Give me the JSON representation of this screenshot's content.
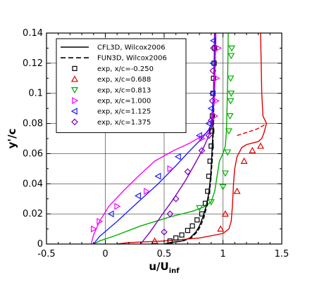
{
  "chart_data": {
    "type": "line",
    "xlabel_main": "u/U",
    "xlabel_sub": "inf",
    "ylabel": "y'/c",
    "xlim": [
      -0.5,
      1.5
    ],
    "ylim": [
      0,
      0.14
    ],
    "xticks": [
      -0.5,
      0,
      0.5,
      1,
      1.5
    ],
    "xtick_labels": [
      "-0.5",
      "0",
      "0.5",
      "1",
      "1.5"
    ],
    "yticks": [
      0,
      0.02,
      0.04,
      0.06,
      0.08,
      0.1,
      0.12,
      0.14
    ],
    "ytick_labels": [
      "0",
      "0.02",
      "0.04",
      "0.06",
      "0.08",
      "0.1",
      "0.12",
      "0.14"
    ],
    "grid": true,
    "legend_position": "top-left",
    "legend": [
      {
        "label": "CFL3D, Wilcox2006",
        "kind": "line",
        "dash": "solid",
        "color": "#000000"
      },
      {
        "label": "FUN3D, Wilcox2006",
        "kind": "line",
        "dash": "dashed",
        "color": "#000000"
      },
      {
        "label": "exp, x/c=-0.250",
        "kind": "marker",
        "marker": "square",
        "color": "#000000"
      },
      {
        "label": "exp, x/c=0.688",
        "kind": "marker",
        "marker": "triangle-up",
        "color": "#e00000"
      },
      {
        "label": "exp, x/c=0.813",
        "kind": "marker",
        "marker": "triangle-down",
        "color": "#00b000"
      },
      {
        "label": "exp, x/c=1.000",
        "kind": "marker",
        "marker": "triangle-right",
        "color": "#ff00ff"
      },
      {
        "label": "exp, x/c=1.125",
        "kind": "marker",
        "marker": "triangle-left",
        "color": "#2020ff"
      },
      {
        "label": "exp, x/c=1.375",
        "kind": "marker",
        "marker": "diamond",
        "color": "#8000c0"
      }
    ],
    "lines": [
      {
        "station": "-0.250",
        "color": "#000000",
        "dash": "solid",
        "points": [
          [
            0.5,
            0
          ],
          [
            0.55,
            0.001
          ],
          [
            0.65,
            0.002
          ],
          [
            0.72,
            0.004
          ],
          [
            0.77,
            0.008
          ],
          [
            0.8,
            0.012
          ],
          [
            0.83,
            0.018
          ],
          [
            0.86,
            0.026
          ],
          [
            0.88,
            0.034
          ],
          [
            0.895,
            0.045
          ],
          [
            0.905,
            0.058
          ],
          [
            0.912,
            0.07
          ],
          [
            0.918,
            0.085
          ],
          [
            0.922,
            0.1
          ],
          [
            0.926,
            0.12
          ],
          [
            0.93,
            0.14
          ]
        ]
      },
      {
        "station": "-0.250",
        "color": "#000000",
        "dash": "dashed",
        "points": [
          [
            0.5,
            0
          ],
          [
            0.56,
            0.001
          ],
          [
            0.66,
            0.002
          ],
          [
            0.73,
            0.004
          ],
          [
            0.78,
            0.008
          ],
          [
            0.81,
            0.012
          ],
          [
            0.84,
            0.018
          ],
          [
            0.865,
            0.026
          ],
          [
            0.885,
            0.034
          ],
          [
            0.9,
            0.045
          ],
          [
            0.91,
            0.058
          ],
          [
            0.916,
            0.07
          ],
          [
            0.921,
            0.085
          ],
          [
            0.925,
            0.1
          ],
          [
            0.929,
            0.12
          ],
          [
            0.933,
            0.14
          ]
        ]
      },
      {
        "station": "0.688",
        "color": "#e00000",
        "dash": "solid",
        "points": [
          [
            0.1,
            0
          ],
          [
            0.2,
            0.001
          ],
          [
            0.5,
            0.002
          ],
          [
            0.8,
            0.004
          ],
          [
            1.0,
            0.007
          ],
          [
            1.05,
            0.01
          ],
          [
            1.07,
            0.015
          ],
          [
            1.08,
            0.025
          ],
          [
            1.09,
            0.04
          ],
          [
            1.1,
            0.05
          ],
          [
            1.12,
            0.058
          ],
          [
            1.16,
            0.064
          ],
          [
            1.2,
            0.066
          ],
          [
            1.25,
            0.067
          ],
          [
            1.3,
            0.068
          ],
          [
            1.33,
            0.07
          ],
          [
            1.35,
            0.074
          ],
          [
            1.37,
            0.08
          ],
          [
            1.34,
            0.085
          ],
          [
            1.33,
            0.1
          ],
          [
            1.32,
            0.14
          ]
        ]
      },
      {
        "station": "0.688",
        "color": "#e00000",
        "dash": "dashed",
        "points": [
          [
            1.12,
            0.072
          ],
          [
            1.2,
            0.074
          ],
          [
            1.28,
            0.076
          ],
          [
            1.33,
            0.078
          ],
          [
            1.37,
            0.08
          ]
        ]
      },
      {
        "station": "0.813",
        "color": "#00b000",
        "dash": "solid",
        "points": [
          [
            -0.1,
            0
          ],
          [
            -0.05,
            0.002
          ],
          [
            0.1,
            0.006
          ],
          [
            0.3,
            0.012
          ],
          [
            0.55,
            0.018
          ],
          [
            0.75,
            0.022
          ],
          [
            0.85,
            0.025
          ],
          [
            0.9,
            0.028
          ],
          [
            0.93,
            0.035
          ],
          [
            0.95,
            0.045
          ],
          [
            0.97,
            0.055
          ],
          [
            1.0,
            0.06
          ],
          [
            1.02,
            0.065
          ],
          [
            1.03,
            0.075
          ],
          [
            1.035,
            0.09
          ],
          [
            1.04,
            0.11
          ],
          [
            1.045,
            0.14
          ]
        ]
      },
      {
        "station": "1.000",
        "color": "#ff00ff",
        "dash": "solid",
        "points": [
          [
            -0.12,
            0
          ],
          [
            -0.1,
            0.006
          ],
          [
            -0.05,
            0.015
          ],
          [
            0.03,
            0.025
          ],
          [
            0.15,
            0.035
          ],
          [
            0.28,
            0.045
          ],
          [
            0.42,
            0.055
          ],
          [
            0.58,
            0.062
          ],
          [
            0.72,
            0.067
          ],
          [
            0.83,
            0.072
          ],
          [
            0.88,
            0.075
          ],
          [
            0.9,
            0.078
          ],
          [
            0.91,
            0.08
          ],
          [
            0.92,
            0.09
          ],
          [
            0.93,
            0.1
          ],
          [
            0.935,
            0.12
          ],
          [
            0.94,
            0.14
          ]
        ]
      },
      {
        "station": "1.125",
        "color": "#2020ff",
        "dash": "solid",
        "points": [
          [
            -0.1,
            0
          ],
          [
            -0.05,
            0.005
          ],
          [
            0.1,
            0.015
          ],
          [
            0.28,
            0.028
          ],
          [
            0.45,
            0.04
          ],
          [
            0.6,
            0.052
          ],
          [
            0.72,
            0.062
          ],
          [
            0.82,
            0.07
          ],
          [
            0.88,
            0.076
          ],
          [
            0.9,
            0.08
          ],
          [
            0.91,
            0.09
          ],
          [
            0.92,
            0.1
          ],
          [
            0.925,
            0.12
          ],
          [
            0.93,
            0.14
          ]
        ]
      },
      {
        "station": "1.375",
        "color": "#8000c0",
        "dash": "solid",
        "points": [
          [
            0.3,
            0
          ],
          [
            0.38,
            0.008
          ],
          [
            0.47,
            0.018
          ],
          [
            0.58,
            0.03
          ],
          [
            0.68,
            0.042
          ],
          [
            0.76,
            0.053
          ],
          [
            0.83,
            0.063
          ],
          [
            0.88,
            0.072
          ],
          [
            0.905,
            0.078
          ],
          [
            0.915,
            0.085
          ],
          [
            0.92,
            0.1
          ],
          [
            0.925,
            0.12
          ],
          [
            0.928,
            0.14
          ]
        ]
      }
    ],
    "markers": [
      {
        "station": "-0.250",
        "marker": "square",
        "color": "#000000",
        "points": [
          [
            0.55,
            0.002
          ],
          [
            0.6,
            0.004
          ],
          [
            0.65,
            0.006
          ],
          [
            0.7,
            0.009
          ],
          [
            0.74,
            0.012
          ],
          [
            0.78,
            0.016
          ],
          [
            0.82,
            0.02
          ],
          [
            0.85,
            0.027
          ],
          [
            0.87,
            0.035
          ],
          [
            0.88,
            0.045
          ],
          [
            0.89,
            0.055
          ],
          [
            0.9,
            0.065
          ],
          [
            0.905,
            0.075
          ],
          [
            0.91,
            0.085
          ],
          [
            0.915,
            0.1
          ],
          [
            0.92,
            0.11
          ],
          [
            0.925,
            0.12
          ],
          [
            0.93,
            0.13
          ]
        ]
      },
      {
        "station": "0.688",
        "marker": "triangle-up",
        "color": "#e00000",
        "points": [
          [
            0.42,
            0.002
          ],
          [
            0.98,
            0.01
          ],
          [
            1.02,
            0.02
          ],
          [
            1.12,
            0.035
          ],
          [
            1.18,
            0.055
          ],
          [
            1.25,
            0.062
          ],
          [
            1.32,
            0.065
          ]
        ]
      },
      {
        "station": "0.813",
        "marker": "triangle-down",
        "color": "#00b000",
        "points": [
          [
            0.8,
            0.024
          ],
          [
            0.9,
            0.028
          ],
          [
            1.0,
            0.038
          ],
          [
            1.02,
            0.047
          ],
          [
            1.04,
            0.061
          ],
          [
            1.05,
            0.075
          ],
          [
            1.06,
            0.085
          ],
          [
            1.065,
            0.095
          ],
          [
            1.07,
            0.1
          ],
          [
            1.065,
            0.11
          ],
          [
            1.07,
            0.125
          ],
          [
            1.075,
            0.13
          ]
        ]
      },
      {
        "station": "1.000",
        "marker": "triangle-right",
        "color": "#ff00ff",
        "points": [
          [
            -0.1,
            0.01
          ],
          [
            -0.05,
            0.015
          ],
          [
            0.1,
            0.025
          ],
          [
            0.35,
            0.035
          ],
          [
            0.55,
            0.05
          ],
          [
            0.82,
            0.07
          ],
          [
            0.93,
            0.085
          ],
          [
            0.94,
            0.095
          ],
          [
            0.945,
            0.11
          ],
          [
            0.96,
            0.13
          ]
        ]
      },
      {
        "station": "1.125",
        "marker": "triangle-left",
        "color": "#2020ff",
        "points": [
          [
            0.05,
            0.02
          ],
          [
            0.28,
            0.032
          ],
          [
            0.45,
            0.045
          ],
          [
            0.62,
            0.058
          ],
          [
            0.8,
            0.072
          ],
          [
            0.88,
            0.08
          ],
          [
            0.9,
            0.09
          ],
          [
            0.91,
            0.1
          ],
          [
            0.915,
            0.12
          ],
          [
            0.92,
            0.135
          ]
        ]
      },
      {
        "station": "1.375",
        "marker": "diamond",
        "color": "#8000c0",
        "points": [
          [
            0.5,
            0.008
          ],
          [
            0.55,
            0.02
          ],
          [
            0.6,
            0.03
          ],
          [
            0.7,
            0.048
          ],
          [
            0.82,
            0.062
          ],
          [
            0.88,
            0.072
          ],
          [
            0.9,
            0.082
          ],
          [
            0.91,
            0.095
          ],
          [
            0.915,
            0.115
          ],
          [
            0.92,
            0.13
          ]
        ]
      }
    ]
  }
}
